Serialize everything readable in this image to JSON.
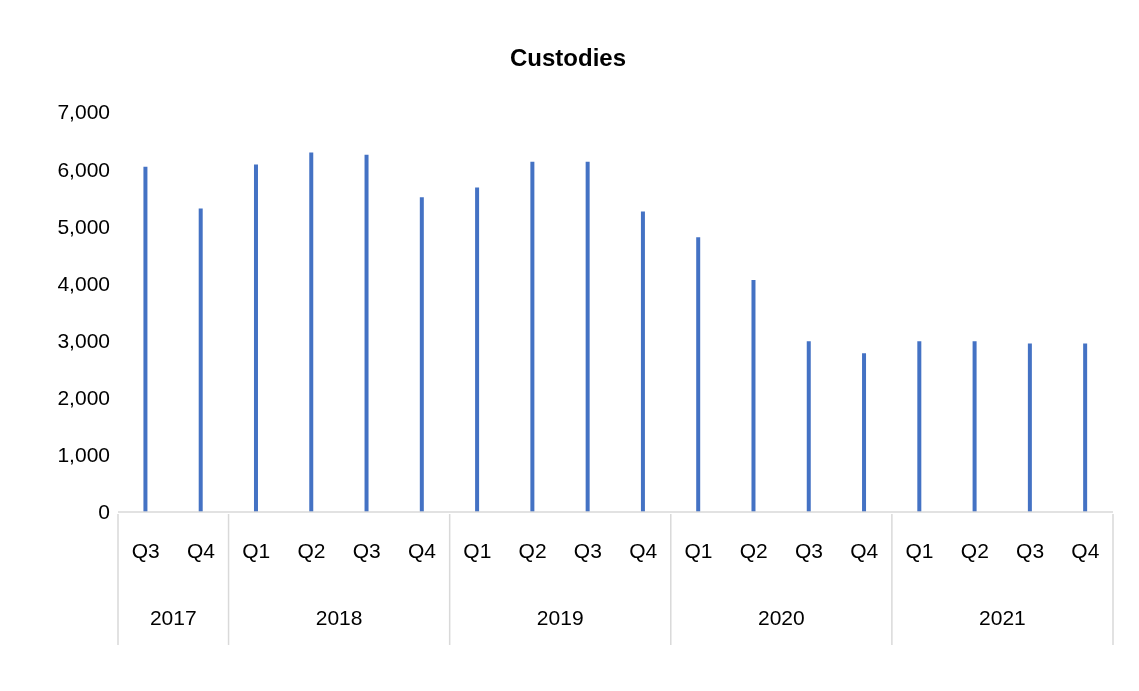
{
  "chart_data": {
    "type": "bar",
    "title": "Custodies",
    "categories": [
      "Q3",
      "Q4",
      "Q1",
      "Q2",
      "Q3",
      "Q4",
      "Q1",
      "Q2",
      "Q3",
      "Q4",
      "Q1",
      "Q2",
      "Q3",
      "Q4",
      "Q1",
      "Q2",
      "Q3",
      "Q4"
    ],
    "values": [
      6040,
      5310,
      6080,
      6290,
      6250,
      5510,
      5680,
      6130,
      6130,
      5260,
      4810,
      4060,
      2990,
      2780,
      2990,
      2990,
      2950,
      2950
    ],
    "color": "#4472c4",
    "ylim": [
      0,
      7000
    ],
    "yticks": [
      {
        "value": 0,
        "label": "0"
      },
      {
        "value": 1000,
        "label": "1,000"
      },
      {
        "value": 2000,
        "label": "2,000"
      },
      {
        "value": 3000,
        "label": "3,000"
      },
      {
        "value": 4000,
        "label": "4,000"
      },
      {
        "value": 5000,
        "label": "5,000"
      },
      {
        "value": 6000,
        "label": "6,000"
      },
      {
        "value": 7000,
        "label": "7,000"
      }
    ],
    "annotations": [
      "2017",
      "2018",
      "2019",
      "2020",
      "2021"
    ],
    "grid": false,
    "legend": false
  }
}
